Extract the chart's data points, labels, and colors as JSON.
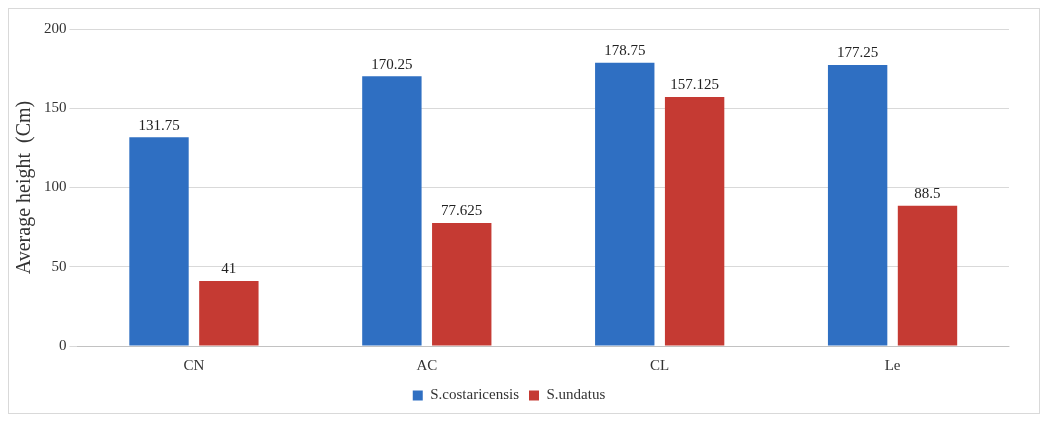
{
  "chart_data": {
    "type": "bar",
    "ylabel": "Average height  (Cm)",
    "categories": [
      "CN",
      "AC",
      "CL",
      "Le"
    ],
    "series": [
      {
        "name": "S.costaricensis",
        "color": "#2f6fc2",
        "values": [
          131.75,
          170.25,
          178.75,
          177.25
        ]
      },
      {
        "name": "S.undatus",
        "color": "#c53a33",
        "values": [
          41,
          77.625,
          157.125,
          88.5
        ]
      }
    ],
    "ylim": [
      0,
      200
    ],
    "yticks": [
      0,
      50,
      100,
      150,
      200
    ],
    "grid": "y",
    "legend": "bottom",
    "data_labels": true
  }
}
